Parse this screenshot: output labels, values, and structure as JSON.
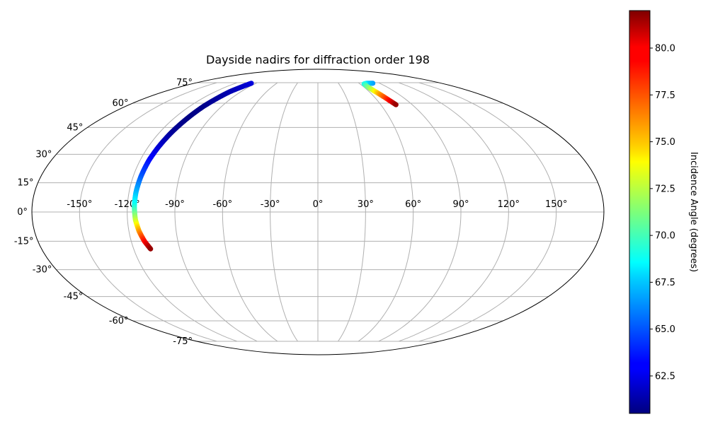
{
  "chart_data": {
    "type": "scatter",
    "projection": "mollweide",
    "title": "Dayside nadirs for diffraction order 198",
    "grid": true,
    "lon_ticks": [
      -150,
      -120,
      -90,
      -60,
      -30,
      0,
      30,
      60,
      90,
      120,
      150
    ],
    "lon_tick_labels": [
      "-150°",
      "-120°",
      "-90°",
      "-60°",
      "-30°",
      "0°",
      "30°",
      "60°",
      "90°",
      "120°",
      "150°"
    ],
    "lat_ticks": [
      75,
      60,
      45,
      30,
      15,
      0,
      -15,
      -30,
      -45,
      -60,
      -75
    ],
    "lat_tick_labels": [
      "75°",
      "60°",
      "45°",
      "30°",
      "15°",
      "0°",
      "-15°",
      "-30°",
      "-45°",
      "-60°",
      "-75°"
    ],
    "colormap": "jet",
    "colorbar": {
      "label": "Incidence Angle (degrees)",
      "range": [
        60.5,
        82.0
      ],
      "ticks": [
        62.5,
        65.0,
        67.5,
        70.0,
        72.5,
        75.0,
        77.5,
        80.0
      ],
      "tick_labels": [
        "62.5",
        "65.0",
        "67.5",
        "70.0",
        "72.5",
        "75.0",
        "77.5",
        "80.0"
      ]
    },
    "series": [
      {
        "points": [
          {
            "lon": -97,
            "lat": 74.5,
            "c": 62.5
          },
          {
            "lon": -103,
            "lat": 68,
            "c": 61.6
          },
          {
            "lon": -107,
            "lat": 58,
            "c": 60.8
          },
          {
            "lon": -109,
            "lat": 50,
            "c": 60.6
          },
          {
            "lon": -111,
            "lat": 42,
            "c": 61.0
          },
          {
            "lon": -112.5,
            "lat": 35,
            "c": 62.0
          },
          {
            "lon": -114,
            "lat": 27,
            "c": 63.3
          },
          {
            "lon": -115,
            "lat": 18,
            "c": 65.0
          },
          {
            "lon": -115.6,
            "lat": 10,
            "c": 67.0
          },
          {
            "lon": -115.6,
            "lat": 3,
            "c": 69.0
          },
          {
            "lon": -115,
            "lat": -4,
            "c": 72.5
          },
          {
            "lon": -113.5,
            "lat": -10,
            "c": 76.0
          },
          {
            "lon": -111.5,
            "lat": -15,
            "c": 79.0
          },
          {
            "lon": -109,
            "lat": -19,
            "c": 81.5
          }
        ]
      },
      {
        "points": [
          {
            "lon": 80,
            "lat": 74.5,
            "c": 66.5
          },
          {
            "lon": 71,
            "lat": 74.5,
            "c": 67.5
          },
          {
            "lon": 66,
            "lat": 74,
            "c": 69.0
          },
          {
            "lon": 65,
            "lat": 72,
            "c": 70.5
          },
          {
            "lon": 66.5,
            "lat": 69,
            "c": 73.0
          },
          {
            "lon": 69,
            "lat": 66,
            "c": 76.0
          },
          {
            "lon": 72,
            "lat": 62,
            "c": 79.0
          },
          {
            "lon": 74.5,
            "lat": 59,
            "c": 81.5
          }
        ]
      }
    ]
  }
}
